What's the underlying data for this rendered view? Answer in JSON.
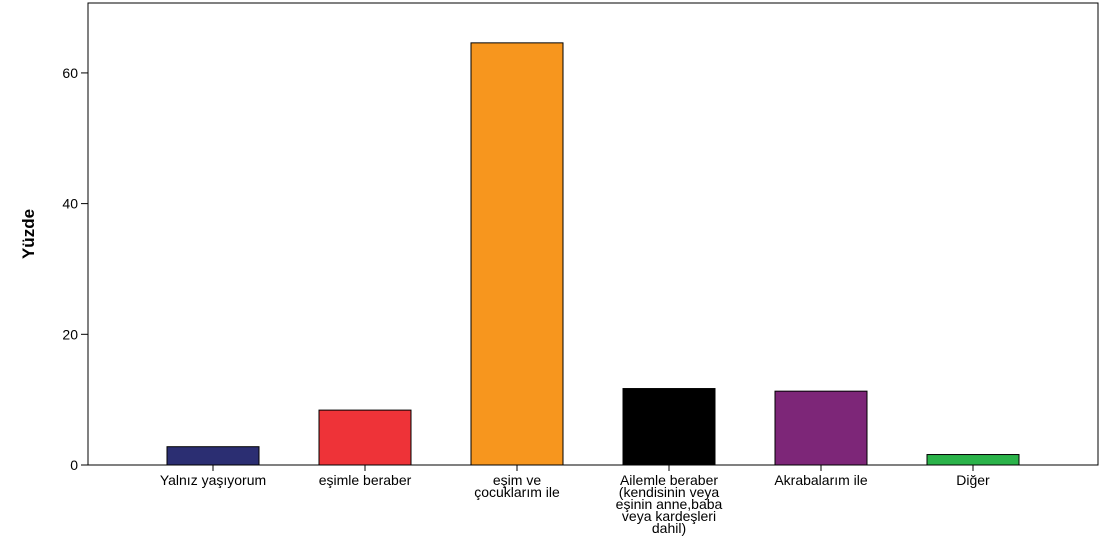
{
  "chart_data": {
    "type": "bar",
    "title": "",
    "xlabel": "",
    "ylabel": "Yüzde",
    "ylim": [
      0,
      70.7
    ],
    "yticks": [
      0,
      20,
      40,
      60
    ],
    "grid": false,
    "categories": [
      [
        "Yalnız yaşıyorum"
      ],
      [
        "eşimle beraber"
      ],
      [
        "eşim ve",
        "çocuklarım ile"
      ],
      [
        "Ailemle beraber",
        "(kendisinin veya",
        "eşinin anne,baba",
        "veya kardeşleri",
        "dahil)"
      ],
      [
        "Akrabalarım ile"
      ],
      [
        "Diğer"
      ]
    ],
    "values": [
      2.8,
      8.4,
      64.6,
      11.7,
      11.3,
      1.6
    ],
    "colors": [
      "#2b2e72",
      "#ee3338",
      "#f7961e",
      "#000000",
      "#7d2678",
      "#2bb34a"
    ]
  }
}
